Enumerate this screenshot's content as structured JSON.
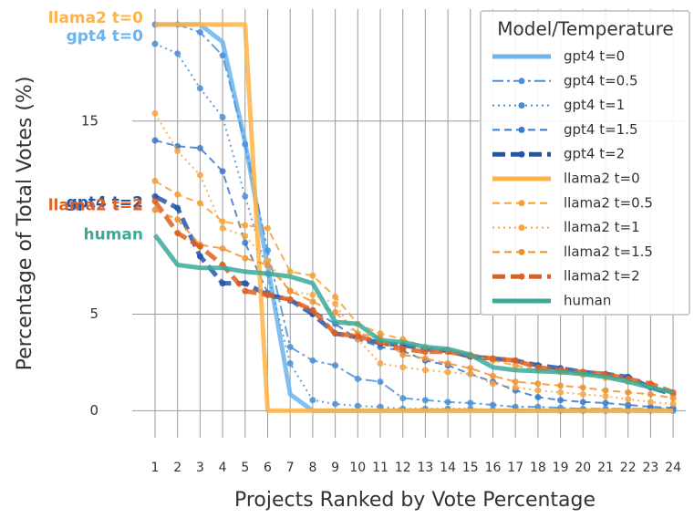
{
  "chart_data": {
    "type": "line",
    "x_label": "Projects Ranked by Vote Percentage",
    "y_label": "Percentage of Total Votes (%)",
    "legend_title": "Model/Temperature",
    "legend": "upper right",
    "grid": true,
    "categories": [
      "1",
      "2",
      "3",
      "4",
      "5",
      "6",
      "7",
      "8",
      "9",
      "10",
      "11",
      "12",
      "13",
      "14",
      "15",
      "16",
      "17",
      "18",
      "19",
      "20",
      "21",
      "22",
      "23",
      "24"
    ],
    "ylim": [
      -1.4,
      20.8
    ],
    "yticks": [
      0,
      5,
      15
    ],
    "series": [
      {
        "name": "gpt4 t=0",
        "color": "#6ab4f0",
        "line_style": "solid",
        "width": 5,
        "markers": false,
        "values": [
          20,
          20,
          20,
          19.1,
          13.9,
          7.5,
          0.85,
          0,
          0,
          0,
          0,
          0,
          0,
          0,
          0,
          0,
          0,
          0,
          0,
          0,
          0,
          0,
          0,
          0
        ]
      },
      {
        "name": "gpt4 t=0.5",
        "color": "#4a90d9",
        "line_style": "dashdot",
        "width": 2,
        "markers": true,
        "values": [
          20,
          20,
          19.6,
          18.4,
          13.8,
          8.3,
          3.3,
          2.6,
          2.35,
          1.65,
          1.5,
          0.65,
          0.55,
          0.45,
          0.4,
          0.3,
          0.2,
          0.2,
          0.15,
          0.1,
          0.1,
          0.1,
          0.1,
          0.1
        ]
      },
      {
        "name": "gpt4 t=1",
        "color": "#4a8fd4",
        "line_style": "dotted",
        "width": 2,
        "markers": true,
        "values": [
          19,
          18.5,
          16.7,
          15.2,
          11.1,
          7.1,
          2.45,
          0.55,
          0.35,
          0.25,
          0.2,
          0.1,
          0.1,
          0.1,
          0.1,
          0.05,
          0.05,
          0.05,
          0,
          0,
          0,
          0,
          0,
          0
        ]
      },
      {
        "name": "gpt4 t=1.5",
        "color": "#3a78c8",
        "line_style": "dashed",
        "width": 2,
        "markers": true,
        "values": [
          14,
          13.7,
          13.6,
          12.4,
          8.7,
          6.1,
          5.7,
          5.2,
          4.5,
          3.7,
          3.3,
          3.1,
          2.6,
          2.35,
          1.9,
          1.5,
          1.05,
          0.7,
          0.55,
          0.45,
          0.4,
          0.3,
          0.2,
          0.15
        ]
      },
      {
        "name": "gpt4 t=2",
        "color": "#2456a8",
        "line_style": "thickdash",
        "width": 5,
        "markers": true,
        "values": [
          11.1,
          10.5,
          8,
          6.6,
          6.6,
          6,
          5.75,
          5,
          4,
          3.8,
          3.5,
          3.4,
          3.2,
          3.1,
          2.8,
          2.7,
          2.6,
          2.35,
          2.2,
          2,
          1.9,
          1.75,
          1.2,
          0.85
        ]
      },
      {
        "name": "llama2 t=0",
        "color": "#ffb347",
        "line_style": "solid",
        "width": 5,
        "markers": false,
        "values": [
          20,
          20,
          20,
          20,
          20,
          0,
          0,
          0,
          0,
          0,
          0,
          0,
          0,
          0,
          0,
          0,
          0,
          0,
          0,
          0,
          0,
          0,
          0,
          0
        ]
      },
      {
        "name": "llama2 t=0.5",
        "color": "#f5a030",
        "line_style": "dashed",
        "width": 2,
        "markers": true,
        "values": [
          11.9,
          11.2,
          10.75,
          9.8,
          9.6,
          9.45,
          7.2,
          7,
          5.9,
          4.5,
          4,
          3.7,
          3.3,
          3.15,
          2.9,
          2.6,
          2.35,
          2.1,
          2,
          1.85,
          1.7,
          1.5,
          1.3,
          0.85
        ]
      },
      {
        "name": "llama2 t=1",
        "color": "#f7a540",
        "line_style": "dotted",
        "width": 2,
        "markers": true,
        "values": [
          15.4,
          13.45,
          12.2,
          9.45,
          9.05,
          7.75,
          6.2,
          6,
          5.55,
          3.7,
          2.45,
          2.25,
          2.1,
          2,
          1.9,
          1.4,
          1.2,
          1.05,
          0.95,
          0.85,
          0.75,
          0.6,
          0.45,
          0.35
        ]
      },
      {
        "name": "llama2 t=1.5",
        "color": "#f09030",
        "line_style": "dashed",
        "width": 2,
        "markers": true,
        "values": [
          10.4,
          9.9,
          8.6,
          8.4,
          7.9,
          7.55,
          6.2,
          5.65,
          5.1,
          4,
          3.8,
          2.9,
          2.7,
          2.45,
          2.2,
          1.8,
          1.5,
          1.4,
          1.3,
          1.2,
          1.05,
          0.95,
          0.85,
          0.65
        ]
      },
      {
        "name": "llama2 t=2",
        "color": "#e06020",
        "line_style": "thickdash",
        "width": 5,
        "markers": true,
        "values": [
          10.85,
          9.2,
          8.5,
          7.55,
          6.2,
          6,
          5.75,
          5.2,
          4,
          3.85,
          3.55,
          3.2,
          3.05,
          3.05,
          2.85,
          2.7,
          2.6,
          2.25,
          2.1,
          2,
          1.9,
          1.65,
          1.4,
          0.95
        ]
      },
      {
        "name": "human",
        "color": "#3aaa9a",
        "line_style": "solid",
        "width": 5,
        "markers": false,
        "values": [
          9.1,
          7.55,
          7.4,
          7.4,
          7.2,
          7.1,
          6.95,
          6.6,
          4.6,
          4.5,
          3.65,
          3.55,
          3.3,
          3.2,
          2.9,
          2.25,
          2.1,
          2.05,
          2,
          1.9,
          1.75,
          1.5,
          1.2,
          0.95
        ]
      }
    ],
    "annotations": [
      {
        "text": "llama2 t=0",
        "series": "llama2 t=0"
      },
      {
        "text": "gpt4 t=0",
        "series": "gpt4 t=0"
      },
      {
        "text": "gpt4 t=2",
        "series": "gpt4 t=2"
      },
      {
        "text": "llama2 t=2",
        "series": "llama2 t=2"
      },
      {
        "text": "human",
        "series": "human"
      }
    ]
  }
}
